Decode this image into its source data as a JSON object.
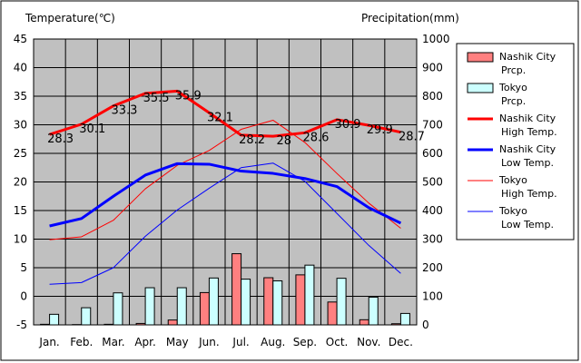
{
  "chart_data": {
    "type": "bar+line",
    "xlabel": "",
    "ylabel_left": "Temperature(℃)",
    "ylabel_right": "Precipitation(mm)",
    "categories": [
      "Jan.",
      "Feb.",
      "Mar.",
      "Apr.",
      "May",
      "Jun.",
      "Jul.",
      "Aug.",
      "Sep.",
      "Oct.",
      "Nov.",
      "Dec."
    ],
    "ylim_left": [
      -5,
      45
    ],
    "yticks_left": [
      "-5",
      "0",
      "5",
      "10",
      "15",
      "20",
      "25",
      "30",
      "35",
      "40",
      "45"
    ],
    "ylim_right": [
      0,
      1000
    ],
    "yticks_right": [
      "0",
      "100",
      "200",
      "300",
      "400",
      "500",
      "600",
      "700",
      "800",
      "900",
      "1000"
    ],
    "grid": true,
    "legend_position": "right",
    "bar_series": [
      {
        "name": "Nashik City Prcp.",
        "color": "#ff8080",
        "values": [
          2,
          1,
          2,
          5,
          17,
          113,
          249,
          165,
          175,
          80,
          18,
          4
        ]
      },
      {
        "name": "Tokyo Prcp.",
        "color": "#ccffff",
        "values": [
          37,
          60,
          112,
          130,
          130,
          164,
          160,
          154,
          209,
          163,
          97,
          40
        ]
      }
    ],
    "line_series": [
      {
        "name": "Nashik City High Temp.",
        "color": "#ff0000",
        "width": 3,
        "values": [
          28.3,
          30.1,
          33.3,
          35.5,
          35.9,
          32.1,
          28.2,
          28.0,
          28.6,
          30.9,
          29.9,
          28.7
        ]
      },
      {
        "name": "Nashik City Low Temp.",
        "color": "#0000ff",
        "width": 3,
        "values": [
          12.3,
          13.6,
          17.5,
          21.2,
          23.2,
          23.1,
          21.9,
          21.5,
          20.6,
          19.2,
          15.5,
          12.8
        ]
      },
      {
        "name": "Tokyo High Temp.",
        "color": "#ff0000",
        "width": 1,
        "values": [
          9.9,
          10.4,
          13.3,
          18.8,
          22.9,
          25.5,
          29.2,
          30.8,
          26.9,
          21.5,
          16.3,
          11.9
        ]
      },
      {
        "name": "Tokyo Low Temp.",
        "color": "#0000ff",
        "width": 1,
        "values": [
          2.1,
          2.4,
          5.0,
          10.5,
          15.1,
          18.9,
          22.5,
          23.3,
          20.1,
          14.5,
          8.9,
          4.0
        ]
      }
    ],
    "data_labels": [
      "28.3",
      "30.1",
      "33.3",
      "35.5",
      "35.9",
      "32.1",
      "28.2",
      "28",
      "28.6",
      "30.9",
      "29.9",
      "28.7"
    ],
    "legend": [
      {
        "line1": "Nashik City",
        "line2": "Prcp."
      },
      {
        "line1": "Tokyo",
        "line2": "Prcp."
      },
      {
        "line1": "Nashik City",
        "line2": "High Temp."
      },
      {
        "line1": "Nashik City",
        "line2": "Low Temp."
      },
      {
        "line1": "Tokyo",
        "line2": "High Temp."
      },
      {
        "line1": "Tokyo",
        "line2": "Low Temp."
      }
    ]
  }
}
